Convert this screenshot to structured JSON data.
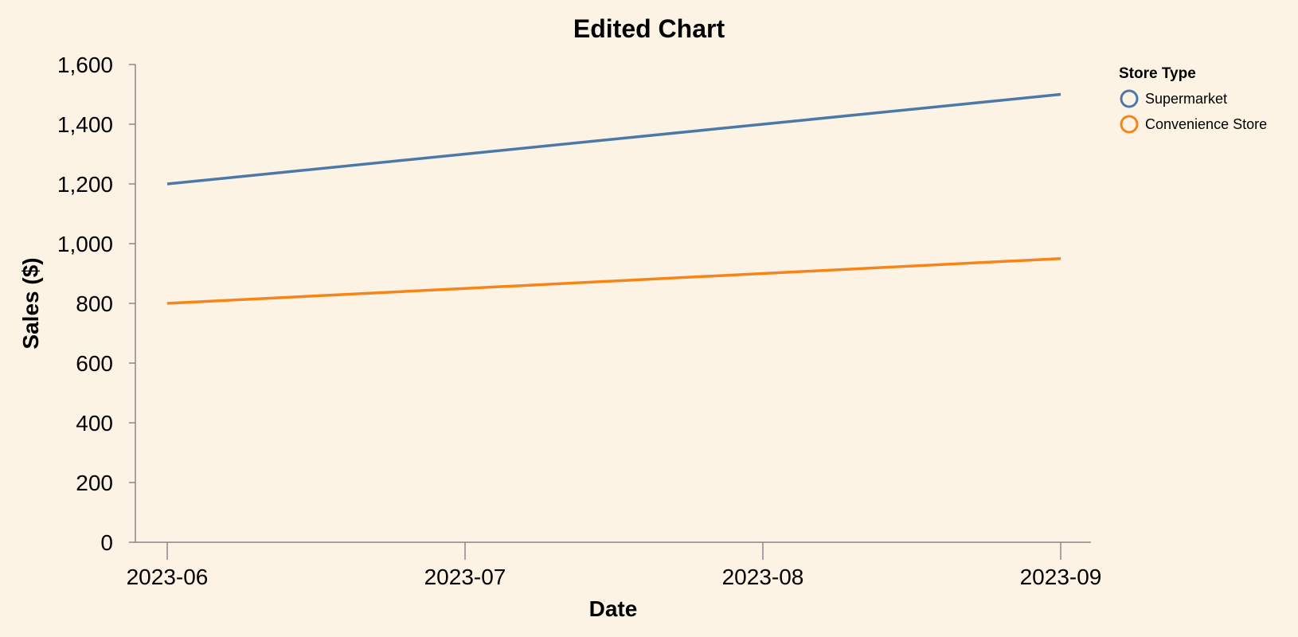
{
  "chart_data": {
    "type": "line",
    "title": "Edited Chart",
    "xlabel": "Date",
    "ylabel": "Sales ($)",
    "x": [
      "2023-06",
      "2023-07",
      "2023-08",
      "2023-09"
    ],
    "xlim": [
      "2023-06",
      "2023-09"
    ],
    "ylim": [
      0,
      1600
    ],
    "yticks": [
      0,
      200,
      400,
      600,
      800,
      1000,
      1200,
      1400,
      1600
    ],
    "ytick_labels": [
      "0",
      "200",
      "400",
      "600",
      "800",
      "1,000",
      "1,200",
      "1,400",
      "1,600"
    ],
    "grid": false,
    "legend": {
      "title": "Store Type",
      "placement": "top-right"
    },
    "series": [
      {
        "name": "Supermarket",
        "color": "#4c78a8",
        "values": [
          1200,
          1300,
          1400,
          1500
        ]
      },
      {
        "name": "Convenience Store",
        "color": "#f58518",
        "values": [
          800,
          850,
          900,
          950
        ]
      }
    ]
  }
}
